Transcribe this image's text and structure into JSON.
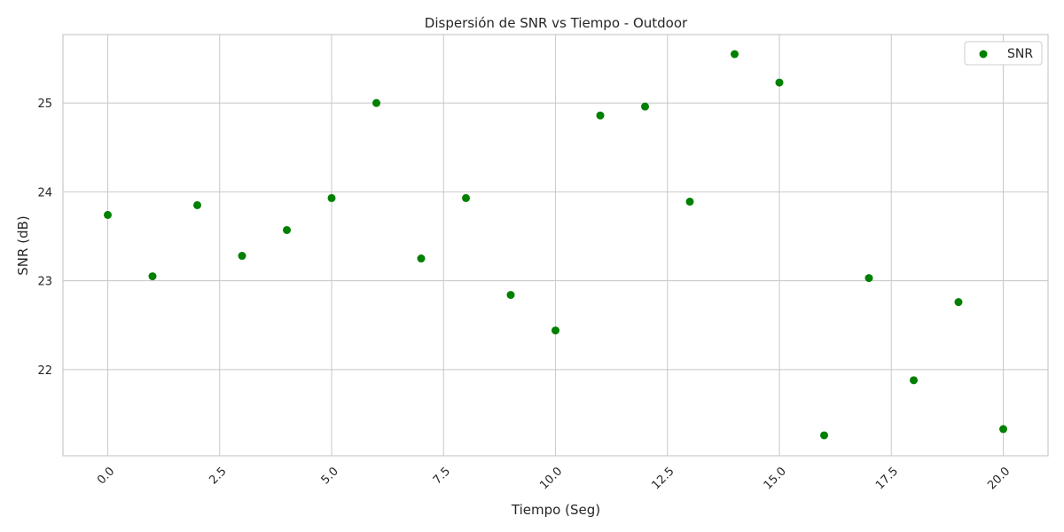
{
  "chart_data": {
    "type": "scatter",
    "title": "Dispersión de SNR vs Tiempo - Outdoor",
    "xlabel": "Tiempo (Seg)",
    "ylabel": "SNR (dB)",
    "xlim": [
      -1,
      21
    ],
    "ylim": [
      21.03,
      25.77
    ],
    "x_ticks": [
      0.0,
      2.5,
      5.0,
      7.5,
      10.0,
      12.5,
      15.0,
      17.5,
      20.0
    ],
    "x_tick_labels": [
      "0.0",
      "2.5",
      "5.0",
      "7.5",
      "10.0",
      "12.5",
      "15.0",
      "17.5",
      "20.0"
    ],
    "y_ticks": [
      22,
      23,
      24,
      25
    ],
    "y_tick_labels": [
      "22",
      "23",
      "24",
      "25"
    ],
    "grid": true,
    "legend_position": "top-right",
    "series": [
      {
        "name": "SNR",
        "color": "#008000",
        "x": [
          0,
          1,
          2,
          3,
          4,
          5,
          6,
          7,
          8,
          9,
          10,
          11,
          12,
          13,
          14,
          15,
          16,
          17,
          18,
          19,
          20
        ],
        "y": [
          23.74,
          23.05,
          23.85,
          23.28,
          23.57,
          23.93,
          25.0,
          23.25,
          23.93,
          22.84,
          22.44,
          24.86,
          24.96,
          23.89,
          25.55,
          25.23,
          21.26,
          23.03,
          21.88,
          22.76,
          21.33
        ]
      }
    ]
  }
}
